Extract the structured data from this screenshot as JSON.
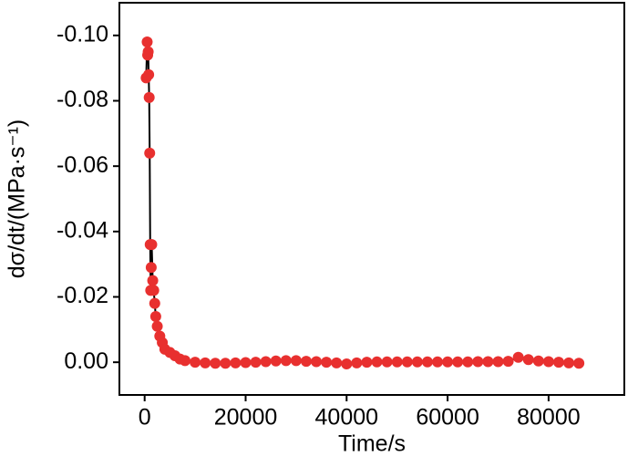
{
  "chart_data": {
    "type": "scatter",
    "x_label": "Time/s",
    "y_label": "dσ/dt/(MPa·s⁻¹)",
    "xlim": [
      -5000,
      95000
    ],
    "xticks": [
      0,
      20000,
      40000,
      60000,
      80000
    ],
    "ylim": [
      0.01,
      -0.11
    ],
    "yticks": [
      {
        "value": -0.1,
        "label": "-0.10"
      },
      -0.08,
      -0.06,
      -0.04,
      -0.02,
      {
        "value": 0,
        "label": "0.00"
      }
    ],
    "connect": true,
    "line_color": "#000000",
    "series": [
      {
        "color": "#e8302f",
        "x": [
          300,
          500,
          600,
          700,
          800,
          900,
          1000,
          1100,
          1200,
          1300,
          1400,
          1600,
          1800,
          2000,
          2200,
          2500,
          3000,
          3500,
          4000,
          5000,
          6000,
          7000,
          8000,
          10000,
          12000,
          14000,
          16000,
          18000,
          20000,
          22000,
          24000,
          26000,
          28000,
          30000,
          32000,
          34000,
          36000,
          38000,
          40000,
          42000,
          44000,
          46000,
          48000,
          50000,
          52000,
          54000,
          56000,
          58000,
          60000,
          62000,
          64000,
          66000,
          68000,
          70000,
          72000,
          74000,
          76000,
          78000,
          80000,
          82000,
          84000,
          86000
        ],
        "values": [
          -0.087,
          -0.098,
          -0.094,
          -0.095,
          -0.088,
          -0.081,
          -0.064,
          -0.036,
          -0.022,
          -0.029,
          -0.036,
          -0.025,
          -0.022,
          -0.018,
          -0.014,
          -0.011,
          -0.008,
          -0.006,
          -0.004,
          -0.003,
          -0.002,
          -0.001,
          -0.0005,
          0.0,
          0.0002,
          0.0003,
          0.0003,
          0.0002,
          0.0001,
          0.0,
          -0.0002,
          -0.0004,
          -0.0005,
          -0.0005,
          -0.0003,
          -0.0002,
          0.0,
          0.0002,
          0.0005,
          0.0002,
          0.0,
          -0.0001,
          -0.0001,
          -0.0001,
          -0.0001,
          -0.0001,
          -0.0001,
          -0.0001,
          -0.0001,
          -0.0001,
          -0.0001,
          -0.0002,
          -0.0002,
          -0.0002,
          -0.0003,
          -0.0015,
          -0.0008,
          -0.0004,
          -0.0002,
          0.0,
          0.0002,
          0.0003
        ]
      }
    ]
  }
}
